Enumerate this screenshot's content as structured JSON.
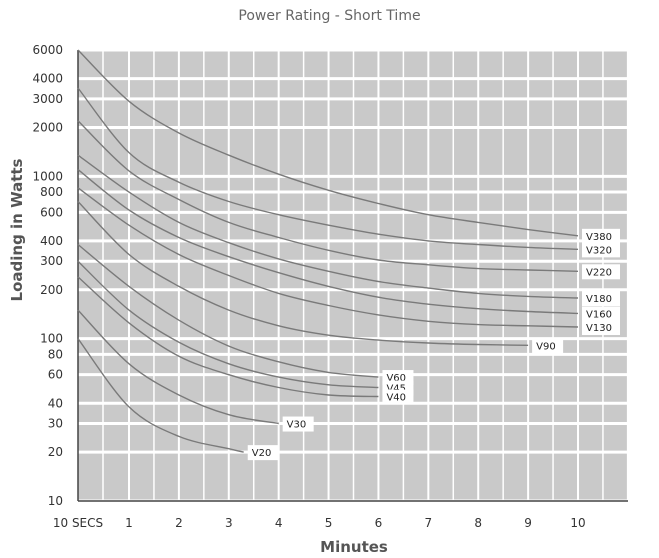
{
  "chart_data": {
    "type": "line",
    "title": "Power Rating - Short Time",
    "xlabel": "Minutes",
    "ylabel": "Loading in Watts",
    "y_scale": "log",
    "x_tick_labels": [
      "10 SECS",
      "1",
      "2",
      "3",
      "4",
      "5",
      "6",
      "7",
      "8",
      "9",
      "10"
    ],
    "y_tick_labels": [
      "6000",
      "4000",
      "3000",
      "2000",
      "1000",
      "800",
      "600",
      "400",
      "300",
      "200",
      "100",
      "80",
      "60",
      "40",
      "30",
      "20",
      "10"
    ],
    "grid": true,
    "series": [
      {
        "name": "V380",
        "x": [
          0.167,
          1,
          2,
          3,
          4,
          5,
          6,
          7,
          8,
          9,
          10
        ],
        "y": [
          6000,
          2900,
          1850,
          1350,
          1030,
          820,
          680,
          580,
          520,
          470,
          430
        ]
      },
      {
        "name": "V320",
        "x": [
          0.167,
          1,
          2,
          3,
          4,
          5,
          6,
          7,
          8,
          9,
          10
        ],
        "y": [
          3500,
          1400,
          920,
          700,
          580,
          500,
          440,
          400,
          380,
          365,
          355
        ]
      },
      {
        "name": "V220",
        "x": [
          0.167,
          1,
          2,
          3,
          4,
          5,
          6,
          7,
          8,
          9,
          10
        ],
        "y": [
          2200,
          1080,
          720,
          520,
          420,
          350,
          305,
          285,
          270,
          265,
          260
        ]
      },
      {
        "name": "V180",
        "x": [
          0.167,
          1,
          2,
          3,
          4,
          5,
          6,
          7,
          8,
          9,
          10
        ],
        "y": [
          1350,
          800,
          520,
          390,
          310,
          260,
          225,
          205,
          190,
          182,
          178
        ]
      },
      {
        "name": "V160",
        "x": [
          0.167,
          1,
          2,
          3,
          4,
          5,
          6,
          7,
          8,
          9,
          10
        ],
        "y": [
          1100,
          620,
          420,
          320,
          255,
          210,
          180,
          163,
          153,
          147,
          143
        ]
      },
      {
        "name": "V130",
        "x": [
          0.167,
          1,
          2,
          3,
          4,
          5,
          6,
          7,
          8,
          9,
          10
        ],
        "y": [
          850,
          500,
          330,
          245,
          190,
          160,
          140,
          128,
          122,
          120,
          118
        ]
      },
      {
        "name": "V90",
        "x": [
          0.167,
          1,
          2,
          3,
          4,
          5,
          6,
          7,
          8,
          9
        ],
        "y": [
          700,
          330,
          210,
          150,
          120,
          105,
          98,
          94,
          92,
          91
        ]
      },
      {
        "name": "V60",
        "x": [
          0.167,
          1,
          2,
          3,
          4,
          5,
          6
        ],
        "y": [
          380,
          210,
          130,
          90,
          72,
          62,
          58
        ]
      },
      {
        "name": "V45",
        "x": [
          0.167,
          1,
          2,
          3,
          4,
          5,
          6
        ],
        "y": [
          300,
          150,
          95,
          70,
          58,
          52,
          50
        ]
      },
      {
        "name": "V40",
        "x": [
          0.167,
          1,
          2,
          3,
          4,
          5,
          6
        ],
        "y": [
          240,
          125,
          78,
          60,
          50,
          45,
          44
        ]
      },
      {
        "name": "V30",
        "x": [
          0.167,
          1,
          2,
          3,
          4
        ],
        "y": [
          150,
          70,
          45,
          34,
          30
        ]
      },
      {
        "name": "V20",
        "x": [
          0.167,
          1,
          2,
          3,
          3.3
        ],
        "y": [
          100,
          38,
          25,
          21,
          20
        ]
      }
    ]
  }
}
